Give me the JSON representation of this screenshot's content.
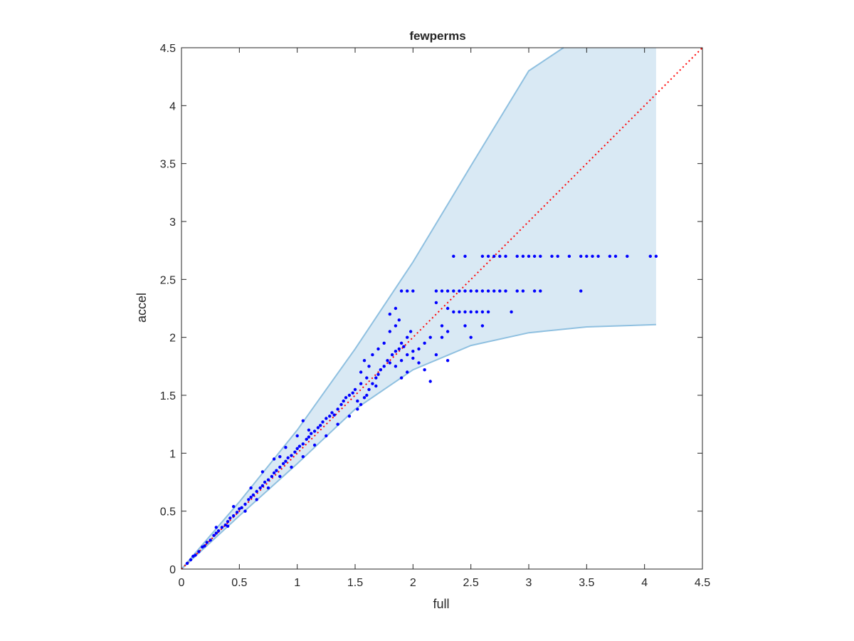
{
  "chart_data": {
    "type": "scatter",
    "title": "fewperms",
    "xlabel": "full",
    "ylabel": "accel",
    "xlim": [
      0,
      4.5
    ],
    "ylim": [
      0,
      4.5
    ],
    "x_ticks": [
      "0",
      "0.5",
      "1",
      "1.5",
      "2",
      "2.5",
      "3",
      "3.5",
      "4",
      "4.5"
    ],
    "y_ticks": [
      "0",
      "0.5",
      "1",
      "1.5",
      "2",
      "2.5",
      "3",
      "3.5",
      "4",
      "4.5"
    ],
    "grid": false,
    "colors": {
      "points": "#0000ff",
      "band_fill": "#d9e9f4",
      "band_edge": "#8fc0e0",
      "reference_line": "#ff0000"
    },
    "band": {
      "upper": [
        [
          0,
          0
        ],
        [
          0.5,
          0.58
        ],
        [
          1,
          1.2
        ],
        [
          1.5,
          1.9
        ],
        [
          2,
          2.65
        ],
        [
          2.5,
          3.48
        ],
        [
          3,
          4.3
        ],
        [
          3.3,
          4.5
        ],
        [
          4.1,
          4.5
        ]
      ],
      "lower": [
        [
          0,
          0
        ],
        [
          0.5,
          0.46
        ],
        [
          1,
          0.91
        ],
        [
          1.5,
          1.38
        ],
        [
          2,
          1.72
        ],
        [
          2.5,
          1.93
        ],
        [
          3,
          2.04
        ],
        [
          3.5,
          2.09
        ],
        [
          4.1,
          2.11
        ]
      ]
    },
    "reference_line": [
      [
        0,
        0
      ],
      [
        4.5,
        4.5
      ]
    ],
    "points": [
      [
        0.05,
        0.05
      ],
      [
        0.08,
        0.08
      ],
      [
        0.1,
        0.11
      ],
      [
        0.12,
        0.12
      ],
      [
        0.15,
        0.15
      ],
      [
        0.18,
        0.19
      ],
      [
        0.2,
        0.2
      ],
      [
        0.22,
        0.23
      ],
      [
        0.25,
        0.25
      ],
      [
        0.28,
        0.29
      ],
      [
        0.3,
        0.31
      ],
      [
        0.32,
        0.33
      ],
      [
        0.35,
        0.36
      ],
      [
        0.38,
        0.38
      ],
      [
        0.4,
        0.41
      ],
      [
        0.42,
        0.44
      ],
      [
        0.45,
        0.46
      ],
      [
        0.48,
        0.49
      ],
      [
        0.5,
        0.52
      ],
      [
        0.52,
        0.53
      ],
      [
        0.55,
        0.56
      ],
      [
        0.58,
        0.6
      ],
      [
        0.6,
        0.62
      ],
      [
        0.62,
        0.64
      ],
      [
        0.65,
        0.67
      ],
      [
        0.68,
        0.7
      ],
      [
        0.7,
        0.72
      ],
      [
        0.72,
        0.75
      ],
      [
        0.75,
        0.77
      ],
      [
        0.78,
        0.8
      ],
      [
        0.8,
        0.83
      ],
      [
        0.82,
        0.85
      ],
      [
        0.85,
        0.88
      ],
      [
        0.88,
        0.91
      ],
      [
        0.9,
        0.93
      ],
      [
        0.92,
        0.96
      ],
      [
        0.95,
        0.98
      ],
      [
        0.98,
        1.01
      ],
      [
        1.0,
        1.04
      ],
      [
        1.02,
        1.06
      ],
      [
        1.05,
        1.08
      ],
      [
        1.08,
        1.12
      ],
      [
        1.1,
        1.14
      ],
      [
        1.12,
        1.17
      ],
      [
        1.15,
        1.19
      ],
      [
        1.18,
        1.22
      ],
      [
        1.2,
        1.24
      ],
      [
        1.22,
        1.27
      ],
      [
        1.25,
        1.3
      ],
      [
        1.28,
        1.32
      ],
      [
        1.3,
        1.35
      ],
      [
        1.32,
        1.33
      ],
      [
        1.35,
        1.38
      ],
      [
        1.38,
        1.42
      ],
      [
        1.4,
        1.45
      ],
      [
        1.42,
        1.48
      ],
      [
        1.45,
        1.5
      ],
      [
        1.48,
        1.52
      ],
      [
        1.5,
        1.55
      ],
      [
        1.55,
        1.6
      ],
      [
        0.3,
        0.36
      ],
      [
        0.45,
        0.54
      ],
      [
        0.6,
        0.7
      ],
      [
        0.7,
        0.84
      ],
      [
        0.8,
        0.95
      ],
      [
        0.9,
        1.05
      ],
      [
        1.0,
        1.15
      ],
      [
        1.05,
        1.28
      ],
      [
        1.1,
        1.2
      ],
      [
        0.85,
        0.97
      ],
      [
        0.4,
        0.37
      ],
      [
        0.55,
        0.5
      ],
      [
        0.65,
        0.6
      ],
      [
        0.75,
        0.7
      ],
      [
        0.85,
        0.8
      ],
      [
        0.95,
        0.88
      ],
      [
        1.05,
        0.97
      ],
      [
        1.15,
        1.07
      ],
      [
        1.25,
        1.15
      ],
      [
        1.35,
        1.25
      ],
      [
        1.45,
        1.32
      ],
      [
        1.52,
        1.38
      ],
      [
        1.55,
        1.42
      ],
      [
        1.58,
        1.48
      ],
      [
        1.6,
        1.5
      ],
      [
        1.62,
        1.55
      ],
      [
        1.65,
        1.6
      ],
      [
        1.68,
        1.65
      ],
      [
        1.7,
        1.68
      ],
      [
        1.72,
        1.72
      ],
      [
        1.75,
        1.75
      ],
      [
        1.78,
        1.8
      ],
      [
        1.8,
        1.78
      ],
      [
        1.82,
        1.85
      ],
      [
        1.85,
        1.88
      ],
      [
        1.88,
        1.9
      ],
      [
        1.9,
        1.95
      ],
      [
        1.92,
        1.92
      ],
      [
        1.95,
        2.0
      ],
      [
        1.98,
        2.05
      ],
      [
        1.6,
        1.65
      ],
      [
        1.62,
        1.75
      ],
      [
        1.65,
        1.85
      ],
      [
        1.7,
        1.9
      ],
      [
        1.75,
        1.95
      ],
      [
        1.8,
        2.05
      ],
      [
        1.85,
        2.1
      ],
      [
        1.88,
        2.15
      ],
      [
        1.55,
        1.7
      ],
      [
        1.58,
        1.8
      ],
      [
        1.85,
        1.75
      ],
      [
        1.9,
        1.8
      ],
      [
        1.95,
        1.85
      ],
      [
        2.0,
        1.82
      ],
      [
        2.05,
        1.9
      ],
      [
        2.1,
        1.95
      ],
      [
        2.15,
        2.0
      ],
      [
        2.2,
        1.85
      ],
      [
        2.25,
        2.0
      ],
      [
        2.3,
        1.8
      ],
      [
        2.0,
        1.88
      ],
      [
        2.05,
        1.78
      ],
      [
        2.1,
        1.72
      ],
      [
        2.15,
        1.62
      ],
      [
        2.25,
        2.1
      ],
      [
        2.3,
        2.05
      ],
      [
        1.95,
        1.7
      ],
      [
        1.9,
        1.65
      ],
      [
        1.52,
        1.45
      ],
      [
        1.68,
        1.58
      ],
      [
        1.8,
        2.2
      ],
      [
        1.85,
        2.25
      ],
      [
        1.9,
        2.4
      ],
      [
        1.95,
        2.4
      ],
      [
        2.0,
        2.4
      ],
      [
        2.2,
        2.3
      ],
      [
        2.3,
        2.25
      ],
      [
        2.35,
        2.22
      ],
      [
        2.4,
        2.22
      ],
      [
        2.45,
        2.22
      ],
      [
        2.5,
        2.22
      ],
      [
        2.55,
        2.22
      ],
      [
        2.6,
        2.22
      ],
      [
        2.65,
        2.22
      ],
      [
        2.85,
        2.22
      ],
      [
        2.45,
        2.1
      ],
      [
        2.5,
        2.0
      ],
      [
        2.6,
        2.1
      ],
      [
        2.2,
        2.4
      ],
      [
        2.25,
        2.4
      ],
      [
        2.3,
        2.4
      ],
      [
        2.35,
        2.4
      ],
      [
        2.4,
        2.4
      ],
      [
        2.45,
        2.4
      ],
      [
        2.5,
        2.4
      ],
      [
        2.55,
        2.4
      ],
      [
        2.6,
        2.4
      ],
      [
        2.65,
        2.4
      ],
      [
        2.7,
        2.4
      ],
      [
        2.75,
        2.4
      ],
      [
        2.8,
        2.4
      ],
      [
        2.9,
        2.4
      ],
      [
        2.95,
        2.4
      ],
      [
        3.05,
        2.4
      ],
      [
        3.1,
        2.4
      ],
      [
        3.45,
        2.4
      ],
      [
        2.35,
        2.7
      ],
      [
        2.45,
        2.7
      ],
      [
        2.6,
        2.7
      ],
      [
        2.75,
        2.7
      ],
      [
        2.8,
        2.7
      ],
      [
        2.9,
        2.7
      ],
      [
        2.95,
        2.7
      ],
      [
        3.0,
        2.7
      ],
      [
        3.05,
        2.7
      ],
      [
        3.1,
        2.7
      ],
      [
        3.2,
        2.7
      ],
      [
        3.25,
        2.7
      ],
      [
        3.35,
        2.7
      ],
      [
        3.45,
        2.7
      ],
      [
        3.5,
        2.7
      ],
      [
        3.55,
        2.7
      ],
      [
        3.6,
        2.7
      ],
      [
        3.7,
        2.7
      ],
      [
        3.75,
        2.7
      ],
      [
        3.85,
        2.7
      ],
      [
        4.05,
        2.7
      ],
      [
        4.1,
        2.7
      ],
      [
        2.7,
        2.7
      ],
      [
        2.65,
        2.7
      ]
    ]
  }
}
